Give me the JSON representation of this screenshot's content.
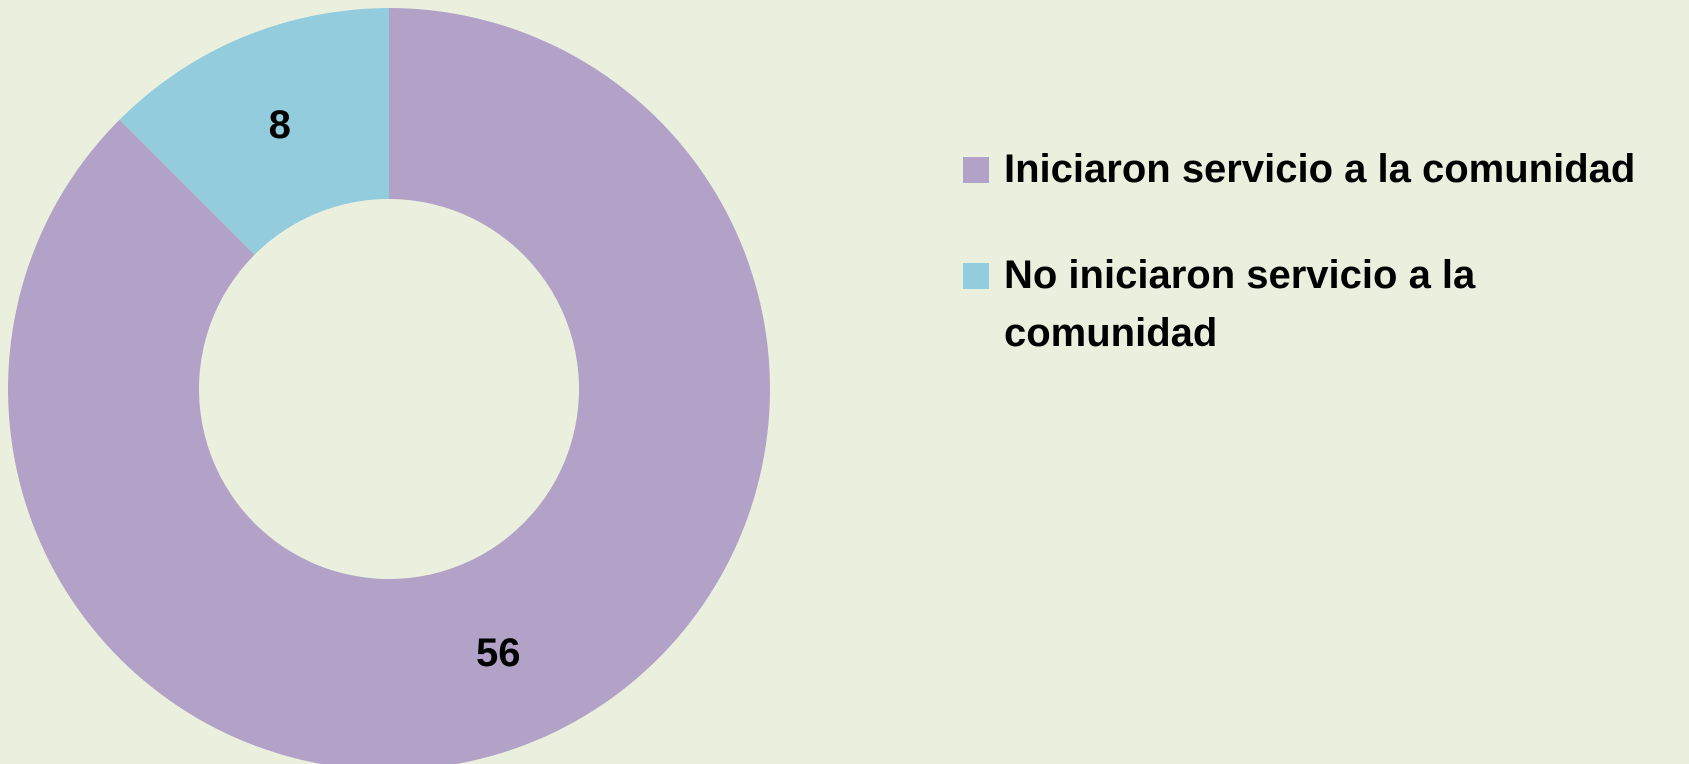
{
  "chart_data": {
    "type": "pie",
    "subtype": "donut",
    "categories": [
      "Iniciaron  servicio a la comunidad",
      "No iniciaron servicio a la comunidad"
    ],
    "values": [
      56,
      8
    ],
    "data_labels": [
      "56",
      "8"
    ],
    "colors": [
      "#b3a2c8",
      "#93cddd"
    ],
    "legend": {
      "position": "right",
      "entries": [
        {
          "label": "Iniciaron  servicio a la comunidad",
          "color": "#b3a2c8"
        },
        {
          "label": "No iniciaron servicio a la comunidad",
          "color": "#93cddd"
        }
      ]
    }
  },
  "background_color": "#ebf0de"
}
